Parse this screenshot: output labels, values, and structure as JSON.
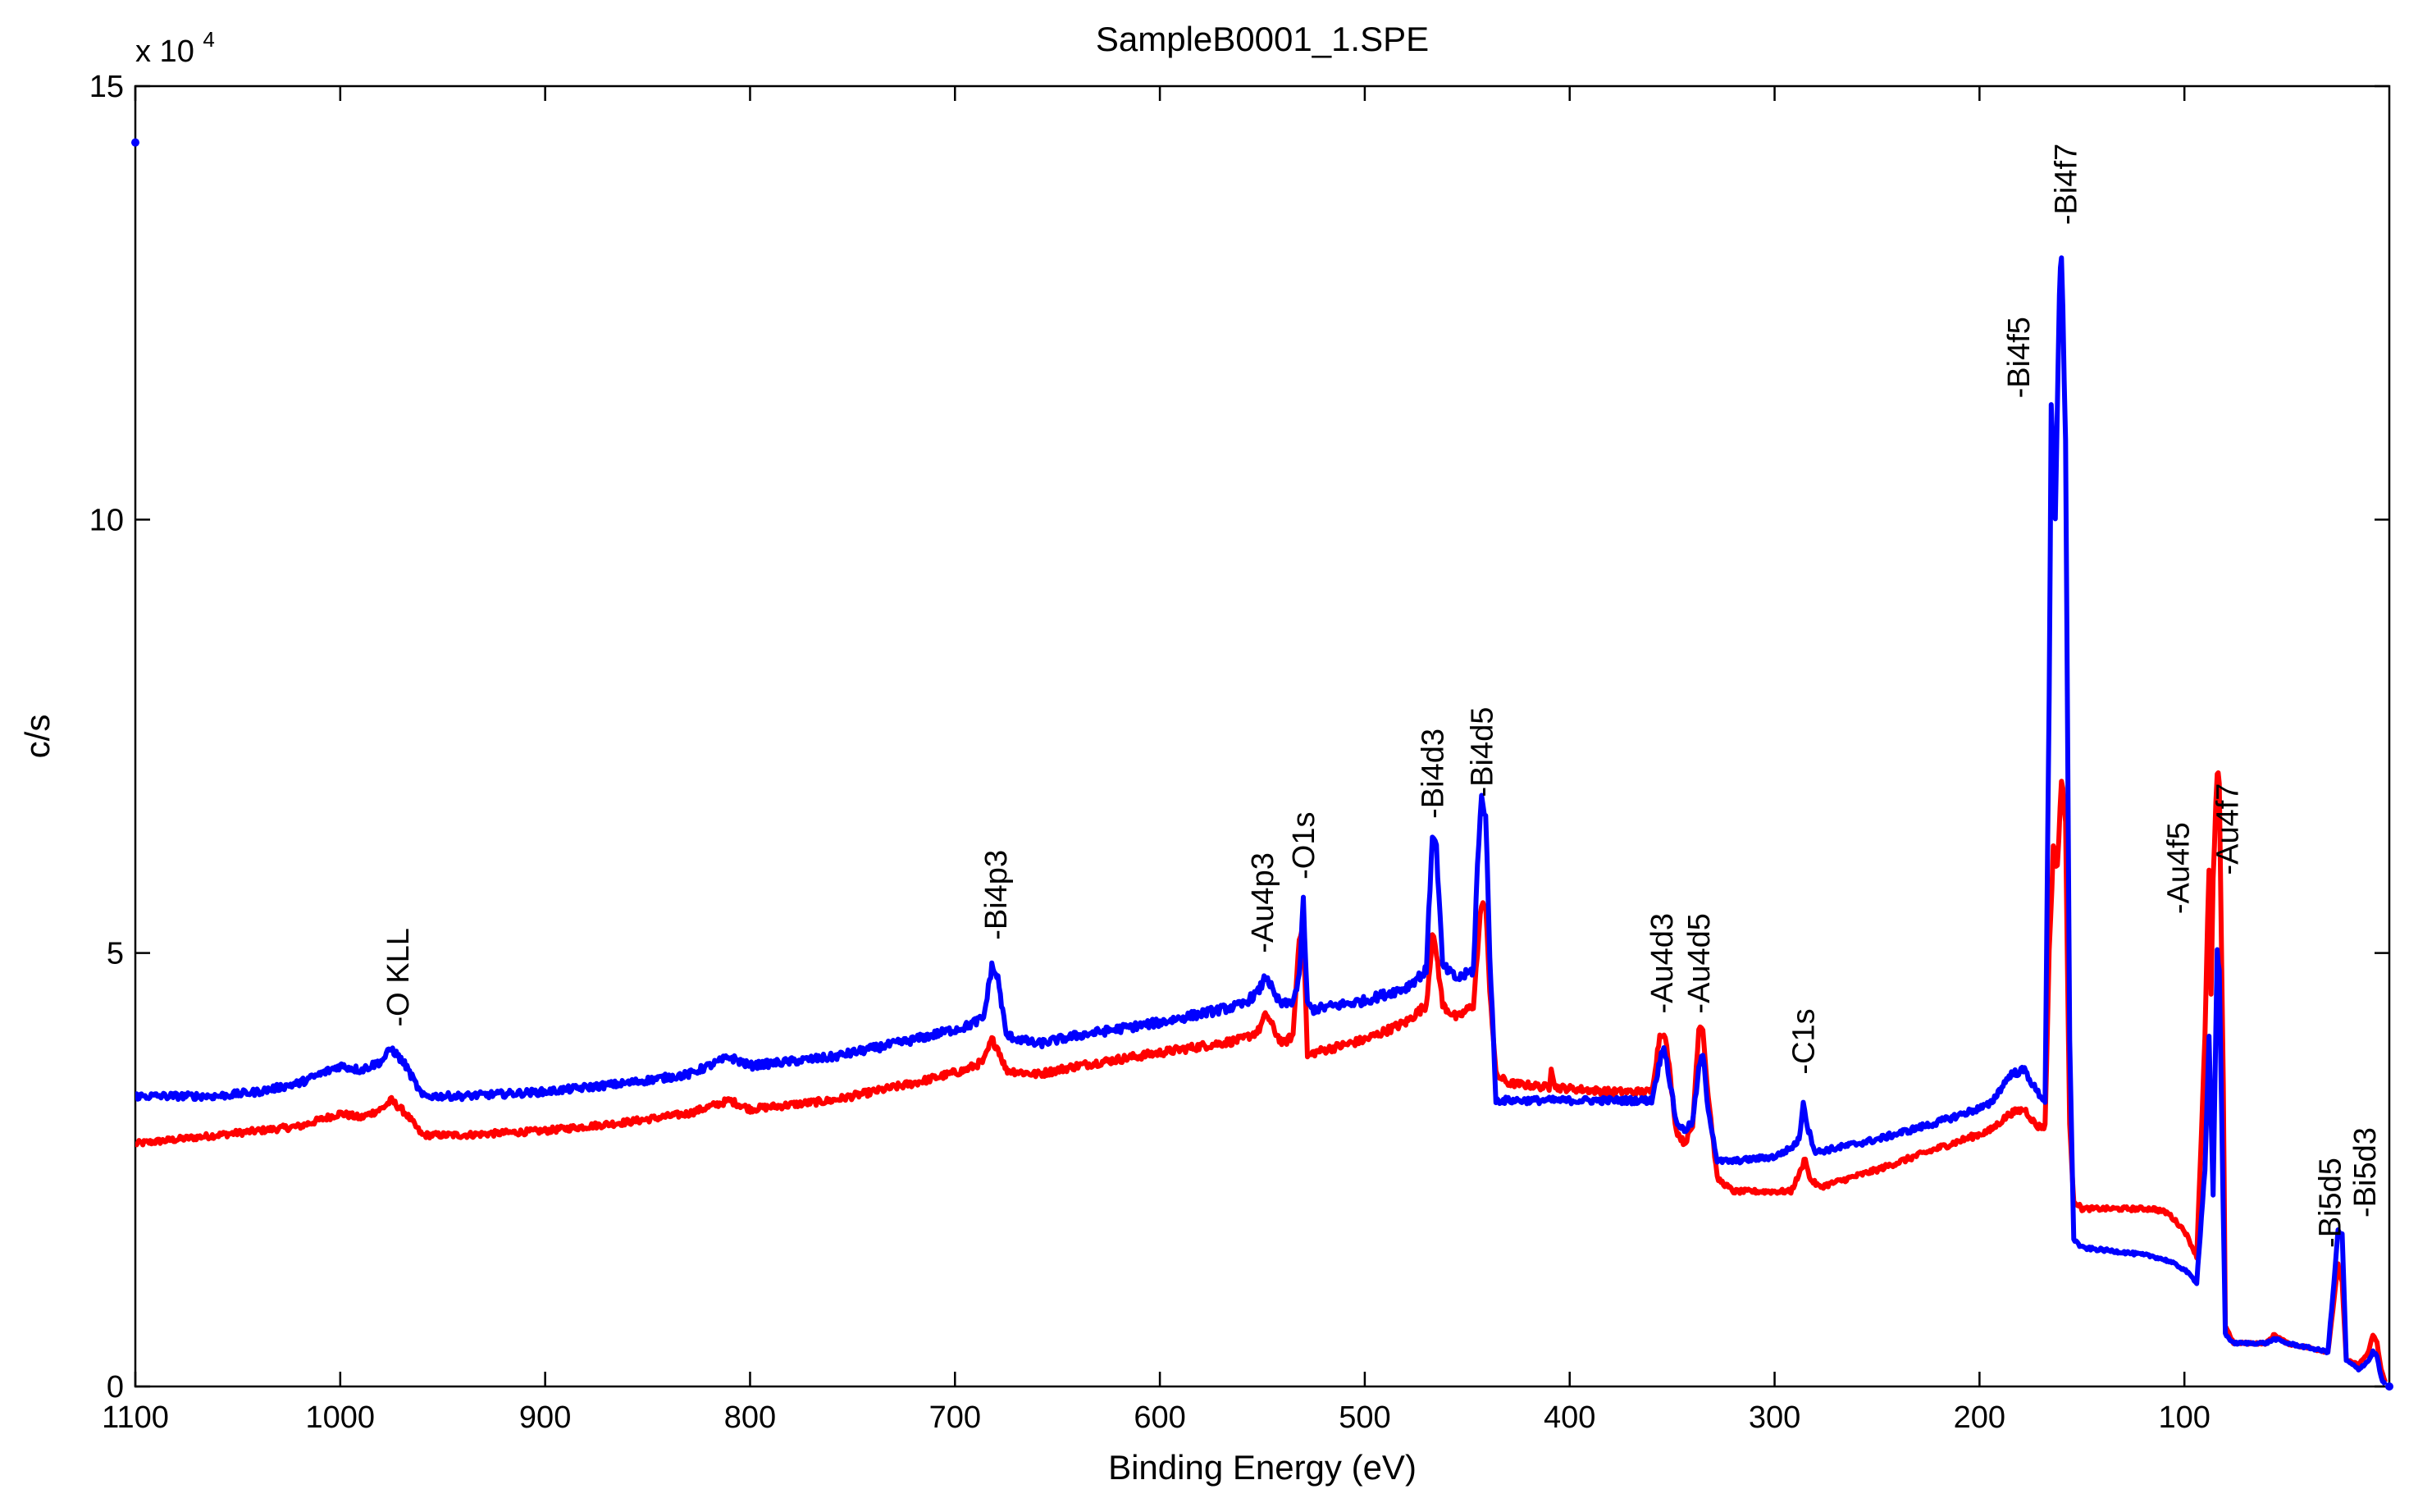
{
  "chart_data": {
    "type": "line",
    "title": "SampleB0001_1.SPE",
    "xlabel": "Binding Energy (eV)",
    "ylabel": "c/s",
    "xlim": [
      1100,
      0
    ],
    "ylim": [
      0,
      150000
    ],
    "x_ticks": [
      {
        "value": 1100,
        "label": "1100"
      },
      {
        "value": 1000,
        "label": "1000"
      },
      {
        "value": 900,
        "label": "900"
      },
      {
        "value": 800,
        "label": "800"
      },
      {
        "value": 700,
        "label": "700"
      },
      {
        "value": 600,
        "label": "600"
      },
      {
        "value": 500,
        "label": "500"
      },
      {
        "value": 400,
        "label": "400"
      },
      {
        "value": 300,
        "label": "300"
      },
      {
        "value": 200,
        "label": "200"
      },
      {
        "value": 100,
        "label": "100"
      }
    ],
    "y_ticks": [
      {
        "value": 0,
        "label": "0"
      },
      {
        "value": 50000,
        "label": "5"
      },
      {
        "value": 100000,
        "label": "10"
      },
      {
        "value": 150000,
        "label": "15"
      }
    ],
    "y_exponent": {
      "base": "x 10",
      "power": "4"
    },
    "grid": false,
    "series": [
      {
        "name": "red",
        "color": "#ff0000",
        "points": [
          [
            1100,
            28000
          ],
          [
            1080,
            28500
          ],
          [
            1060,
            29000
          ],
          [
            1040,
            29500
          ],
          [
            1020,
            30000
          ],
          [
            1000,
            31500
          ],
          [
            990,
            31000
          ],
          [
            980,
            32000
          ],
          [
            975,
            33000
          ],
          [
            968,
            31500
          ],
          [
            960,
            29000
          ],
          [
            940,
            29000
          ],
          [
            900,
            29500
          ],
          [
            860,
            30500
          ],
          [
            830,
            31500
          ],
          [
            810,
            33000
          ],
          [
            800,
            32000
          ],
          [
            760,
            33000
          ],
          [
            720,
            35000
          ],
          [
            695,
            36500
          ],
          [
            686,
            37500
          ],
          [
            682,
            40000
          ],
          [
            679,
            39000
          ],
          [
            675,
            36500
          ],
          [
            660,
            36000
          ],
          [
            640,
            37000
          ],
          [
            600,
            38500
          ],
          [
            560,
            40000
          ],
          [
            552,
            41000
          ],
          [
            548,
            43000
          ],
          [
            544,
            41000
          ],
          [
            540,
            39500
          ],
          [
            535,
            40500
          ],
          [
            532,
            52000
          ],
          [
            530,
            53500
          ],
          [
            528,
            38000
          ],
          [
            525,
            38500
          ],
          [
            500,
            40000
          ],
          [
            480,
            42000
          ],
          [
            470,
            44000
          ],
          [
            467,
            52000
          ],
          [
            465,
            50000
          ],
          [
            462,
            44000
          ],
          [
            455,
            42500
          ],
          [
            447,
            44000
          ],
          [
            445,
            50000
          ],
          [
            443,
            56000
          ],
          [
            441,
            55000
          ],
          [
            439,
            46000
          ],
          [
            436,
            36000
          ],
          [
            430,
            35000
          ],
          [
            410,
            34500
          ],
          [
            409,
            37000
          ],
          [
            407,
            34500
          ],
          [
            380,
            34000
          ],
          [
            360,
            34000
          ],
          [
            356,
            40500
          ],
          [
            354,
            41000
          ],
          [
            352,
            38000
          ],
          [
            348,
            29500
          ],
          [
            344,
            28000
          ],
          [
            340,
            30000
          ],
          [
            337,
            41500
          ],
          [
            335,
            41500
          ],
          [
            333,
            35000
          ],
          [
            328,
            24000
          ],
          [
            320,
            22500
          ],
          [
            300,
            22500
          ],
          [
            292,
            22500
          ],
          [
            287,
            25000
          ],
          [
            285,
            26500
          ],
          [
            283,
            24000
          ],
          [
            278,
            23000
          ],
          [
            250,
            25000
          ],
          [
            220,
            27500
          ],
          [
            195,
            29500
          ],
          [
            185,
            31500
          ],
          [
            178,
            32000
          ],
          [
            172,
            30000
          ],
          [
            168,
            30000
          ],
          [
            166,
            50000
          ],
          [
            164,
            62000
          ],
          [
            162,
            60000
          ],
          [
            160,
            70000
          ],
          [
            158,
            65000
          ],
          [
            156,
            30000
          ],
          [
            154,
            21500
          ],
          [
            150,
            20500
          ],
          [
            130,
            20500
          ],
          [
            115,
            20500
          ],
          [
            108,
            20000
          ],
          [
            100,
            18000
          ],
          [
            94,
            15000
          ],
          [
            90,
            40000
          ],
          [
            88,
            60000
          ],
          [
            87,
            45000
          ],
          [
            86,
            58000
          ],
          [
            84,
            71000
          ],
          [
            83,
            69000
          ],
          [
            81,
            35000
          ],
          [
            80,
            7000
          ],
          [
            76,
            5000
          ],
          [
            60,
            5000
          ],
          [
            56,
            6000
          ],
          [
            50,
            5000
          ],
          [
            40,
            4500
          ],
          [
            30,
            4000
          ],
          [
            27,
            10000
          ],
          [
            25,
            14000
          ],
          [
            23,
            12000
          ],
          [
            21,
            3000
          ],
          [
            15,
            2500
          ],
          [
            10,
            4000
          ],
          [
            8,
            6000
          ],
          [
            6,
            5000
          ],
          [
            4,
            2000
          ],
          [
            2,
            500
          ]
        ]
      },
      {
        "name": "blue",
        "color": "#0000ff",
        "points": [
          [
            1100,
            33500
          ],
          [
            1060,
            33500
          ],
          [
            1040,
            34000
          ],
          [
            1020,
            35000
          ],
          [
            1000,
            37000
          ],
          [
            990,
            36500
          ],
          [
            980,
            37500
          ],
          [
            975,
            39000
          ],
          [
            968,
            37000
          ],
          [
            960,
            33500
          ],
          [
            940,
            33500
          ],
          [
            900,
            34000
          ],
          [
            860,
            35000
          ],
          [
            830,
            36000
          ],
          [
            810,
            38000
          ],
          [
            800,
            37000
          ],
          [
            760,
            38000
          ],
          [
            720,
            40000
          ],
          [
            695,
            41500
          ],
          [
            686,
            42500
          ],
          [
            682,
            48500
          ],
          [
            679,
            47000
          ],
          [
            675,
            40500
          ],
          [
            660,
            39500
          ],
          [
            640,
            40500
          ],
          [
            600,
            42000
          ],
          [
            560,
            44000
          ],
          [
            552,
            45500
          ],
          [
            548,
            47500
          ],
          [
            544,
            45000
          ],
          [
            540,
            44000
          ],
          [
            535,
            44500
          ],
          [
            532,
            47000
          ],
          [
            530,
            56000
          ],
          [
            528,
            44000
          ],
          [
            525,
            43500
          ],
          [
            500,
            44500
          ],
          [
            480,
            46000
          ],
          [
            470,
            48000
          ],
          [
            467,
            64000
          ],
          [
            465,
            62000
          ],
          [
            462,
            48500
          ],
          [
            455,
            47000
          ],
          [
            447,
            48000
          ],
          [
            445,
            60000
          ],
          [
            443,
            68000
          ],
          [
            441,
            66000
          ],
          [
            439,
            50000
          ],
          [
            436,
            33000
          ],
          [
            430,
            33000
          ],
          [
            410,
            33000
          ],
          [
            380,
            33000
          ],
          [
            360,
            33000
          ],
          [
            356,
            37500
          ],
          [
            354,
            39500
          ],
          [
            352,
            36500
          ],
          [
            348,
            30500
          ],
          [
            344,
            29500
          ],
          [
            340,
            30500
          ],
          [
            337,
            36500
          ],
          [
            335,
            38500
          ],
          [
            333,
            33000
          ],
          [
            328,
            26000
          ],
          [
            320,
            26000
          ],
          [
            300,
            26500
          ],
          [
            292,
            27500
          ],
          [
            288,
            28500
          ],
          [
            286,
            33000
          ],
          [
            284,
            30000
          ],
          [
            280,
            27000
          ],
          [
            250,
            28500
          ],
          [
            220,
            30500
          ],
          [
            195,
            32500
          ],
          [
            185,
            36000
          ],
          [
            178,
            36500
          ],
          [
            172,
            34000
          ],
          [
            168,
            33000
          ],
          [
            166,
            80000
          ],
          [
            165,
            112000
          ],
          [
            163,
            100000
          ],
          [
            161,
            125000
          ],
          [
            160,
            131000
          ],
          [
            158,
            110000
          ],
          [
            156,
            40000
          ],
          [
            154,
            17000
          ],
          [
            150,
            16000
          ],
          [
            130,
            15500
          ],
          [
            115,
            15000
          ],
          [
            108,
            14500
          ],
          [
            100,
            13500
          ],
          [
            94,
            12000
          ],
          [
            90,
            25000
          ],
          [
            88,
            40000
          ],
          [
            86,
            22000
          ],
          [
            84,
            50000
          ],
          [
            83,
            48000
          ],
          [
            81,
            20000
          ],
          [
            80,
            6000
          ],
          [
            76,
            5000
          ],
          [
            60,
            5000
          ],
          [
            56,
            5500
          ],
          [
            50,
            5000
          ],
          [
            40,
            4500
          ],
          [
            30,
            4000
          ],
          [
            27,
            12000
          ],
          [
            25,
            18000
          ],
          [
            23,
            17500
          ],
          [
            21,
            3000
          ],
          [
            15,
            2000
          ],
          [
            10,
            3000
          ],
          [
            8,
            4000
          ],
          [
            6,
            3500
          ],
          [
            4,
            1000
          ],
          [
            2,
            200
          ]
        ]
      }
    ],
    "annotations": [
      {
        "text": "-O KLL",
        "x": 972,
        "y": 41500
      },
      {
        "text": "-Bi4p3",
        "x": 680,
        "y": 51500
      },
      {
        "text": "-Au4p3",
        "x": 550,
        "y": 50000
      },
      {
        "text": "-O1s",
        "x": 530,
        "y": 58500
      },
      {
        "text": "-Bi4d3",
        "x": 467,
        "y": 65500
      },
      {
        "text": "-Bi4d5",
        "x": 443,
        "y": 68000
      },
      {
        "text": "-Au4d3",
        "x": 355,
        "y": 43000
      },
      {
        "text": "-Au4d5",
        "x": 337,
        "y": 43000
      },
      {
        "text": "-C1s",
        "x": 286,
        "y": 36000
      },
      {
        "text": "-Bi4f5",
        "x": 181,
        "y": 114000
      },
      {
        "text": "-Bi4f7",
        "x": 158,
        "y": 134000
      },
      {
        "text": "-Au4f5",
        "x": 103,
        "y": 54500
      },
      {
        "text": "-Au4f7",
        "x": 79,
        "y": 59000
      },
      {
        "text": "-Bi5d5",
        "x": 29,
        "y": 16000
      },
      {
        "text": "-Bi5d3",
        "x": 12,
        "y": 19500
      }
    ],
    "markers": [
      {
        "x": 1100,
        "y": 143500,
        "color": "#0000ff"
      },
      {
        "x": 0,
        "y": 0,
        "color": "#0000ff"
      }
    ]
  }
}
